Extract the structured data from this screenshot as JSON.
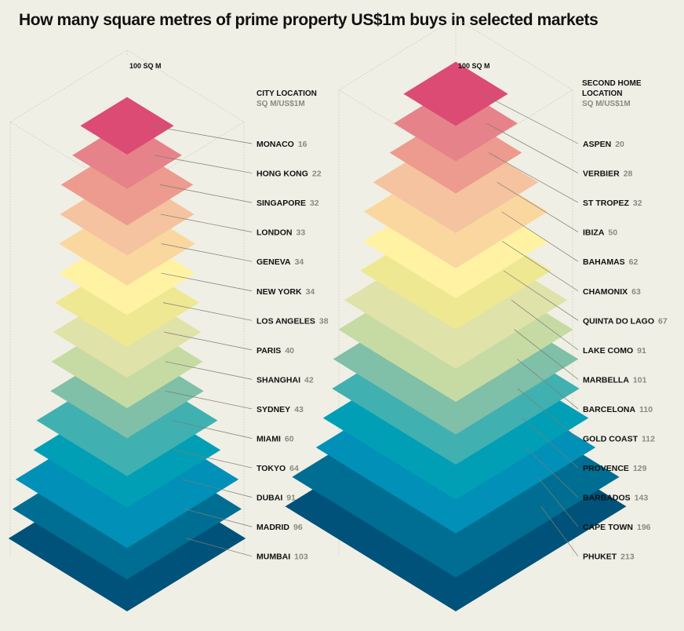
{
  "title": "How many square metres of prime property US$1m buys in selected markets",
  "colors": {
    "background": "#f0efe5",
    "scale": [
      "#dc4b73",
      "#e6838a",
      "#ec9b8e",
      "#f5c39f",
      "#fbd7a0",
      "#fff3a3",
      "#efe893",
      "#dfe2a9",
      "#c6dba3",
      "#80bfa8",
      "#41b0b1",
      "#009fb5",
      "#0090b8",
      "#006e92",
      "#00527a"
    ]
  },
  "chart_data": [
    {
      "type": "stacked-diamond",
      "reference_label": "100 SQ M",
      "heading_line1": "CITY LOCATION",
      "heading_line2": "",
      "subheading": "SQ M/US$1M",
      "unit": "SQ M/US$1M",
      "categories": [
        "MONACO",
        "HONG KONG",
        "SINGAPORE",
        "LONDON",
        "GENEVA",
        "NEW YORK",
        "LOS ANGELES",
        "PARIS",
        "SHANGHAI",
        "SYDNEY",
        "MIAMI",
        "TOKYO",
        "DUBAI",
        "MADRID",
        "MUMBAI"
      ],
      "values": [
        16,
        22,
        32,
        33,
        34,
        34,
        38,
        40,
        42,
        43,
        60,
        64,
        91,
        96,
        103
      ]
    },
    {
      "type": "stacked-diamond",
      "reference_label": "100 SQ M",
      "heading_line1": "SECOND HOME",
      "heading_line2": "LOCATION",
      "subheading": "SQ M/US$1M",
      "unit": "SQ M/US$1M",
      "categories": [
        "ASPEN",
        "VERBIER",
        "ST TROPEZ",
        "IBIZA",
        "BAHAMAS",
        "CHAMONIX",
        "QUINTA DO LAGO",
        "LAKE COMO",
        "MARBELLA",
        "BARCELONA",
        "GOLD COAST",
        "PROVENCE",
        "BARBADOS",
        "CAPE TOWN",
        "PHUKET"
      ],
      "values": [
        20,
        28,
        32,
        50,
        62,
        63,
        67,
        91,
        101,
        110,
        112,
        129,
        143,
        196,
        213
      ]
    }
  ]
}
